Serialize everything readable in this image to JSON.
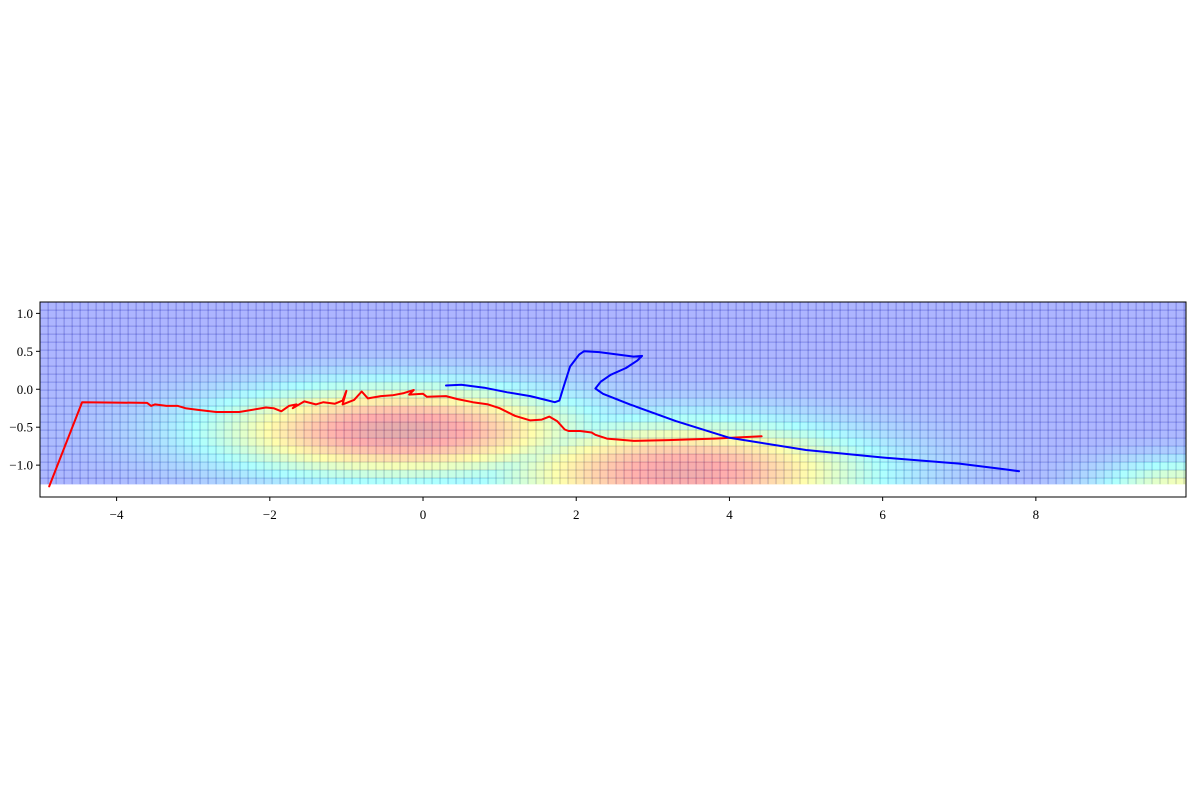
{
  "chart_data": {
    "type": "line",
    "title": "",
    "xlabel": "",
    "ylabel": "",
    "xlim": [
      -5.0,
      9.96
    ],
    "ylim": [
      -1.42,
      1.15
    ],
    "heatmap_extent": {
      "x": [
        -5.0,
        9.96
      ],
      "y": [
        -1.25,
        1.15
      ]
    },
    "xticks": [
      -4,
      -2,
      0,
      2,
      4,
      6,
      8
    ],
    "yticks": [
      1.0,
      0.5,
      0.0,
      -0.5,
      -1.0
    ],
    "xtick_labels": [
      "−4",
      "−2",
      "0",
      "2",
      "4",
      "6",
      "8"
    ],
    "ytick_labels": [
      "1.0",
      "0.5",
      "0.0",
      "−0.5",
      "−1.0"
    ],
    "grid": true,
    "background": {
      "type": "heatmap",
      "colormap": "jet",
      "grid_color": "#00006e",
      "hotspots": [
        {
          "center": [
            -0.3,
            -0.55
          ],
          "spread": [
            1.6,
            0.4
          ],
          "intensity": 0.95
        },
        {
          "center": [
            3.4,
            -1.1
          ],
          "spread": [
            1.6,
            0.45
          ],
          "intensity": 0.9
        },
        {
          "center": [
            10.0,
            -1.3
          ],
          "spread": [
            0.8,
            0.25
          ],
          "intensity": 0.55
        }
      ]
    },
    "series": [
      {
        "color": "#ff0000",
        "x": [
          -4.88,
          -4.45,
          -3.6,
          -3.55,
          -3.5,
          -3.35,
          -3.2,
          -3.1,
          -2.95,
          -2.7,
          -2.4,
          -2.05,
          -1.95,
          -1.85,
          -1.75,
          -1.65,
          -1.7,
          -1.55,
          -1.4,
          -1.3,
          -1.15,
          -1.05,
          -1.0,
          -1.05,
          -0.9,
          -0.8,
          -0.72,
          -0.55,
          -0.4,
          -0.25,
          -0.12,
          -0.18,
          0.0,
          0.05,
          0.3,
          0.45,
          0.65,
          0.85,
          1.0,
          1.2,
          1.4,
          1.55,
          1.65,
          1.75,
          1.85,
          1.9,
          2.05,
          2.2,
          2.25,
          2.4,
          2.5,
          2.75,
          3.2,
          3.8,
          4.42
        ],
        "y": [
          -1.28,
          -0.17,
          -0.18,
          -0.22,
          -0.2,
          -0.22,
          -0.22,
          -0.25,
          -0.27,
          -0.3,
          -0.3,
          -0.24,
          -0.25,
          -0.29,
          -0.22,
          -0.2,
          -0.25,
          -0.16,
          -0.2,
          -0.17,
          -0.19,
          -0.15,
          -0.02,
          -0.2,
          -0.14,
          -0.03,
          -0.12,
          -0.09,
          -0.08,
          -0.05,
          -0.01,
          -0.07,
          -0.06,
          -0.1,
          -0.09,
          -0.13,
          -0.17,
          -0.2,
          -0.25,
          -0.35,
          -0.41,
          -0.4,
          -0.36,
          -0.42,
          -0.53,
          -0.55,
          -0.55,
          -0.57,
          -0.6,
          -0.65,
          -0.66,
          -0.68,
          -0.67,
          -0.65,
          -0.62
        ]
      },
      {
        "color": "#0000ff",
        "x": [
          0.3,
          0.5,
          0.8,
          1.1,
          1.4,
          1.6,
          1.72,
          1.78,
          1.84,
          1.92,
          2.04,
          2.1,
          2.3,
          2.75,
          2.86,
          2.8,
          2.65,
          2.45,
          2.32,
          2.25,
          2.35,
          2.7,
          3.3,
          4.0,
          5.0,
          6.0,
          7.0,
          7.55,
          7.78
        ],
        "y": [
          0.05,
          0.06,
          0.02,
          -0.04,
          -0.09,
          -0.14,
          -0.17,
          -0.15,
          0.05,
          0.3,
          0.46,
          0.5,
          0.49,
          0.43,
          0.44,
          0.38,
          0.28,
          0.19,
          0.1,
          0.01,
          -0.06,
          -0.2,
          -0.42,
          -0.64,
          -0.8,
          -0.9,
          -0.98,
          -1.05,
          -1.08
        ]
      }
    ]
  }
}
